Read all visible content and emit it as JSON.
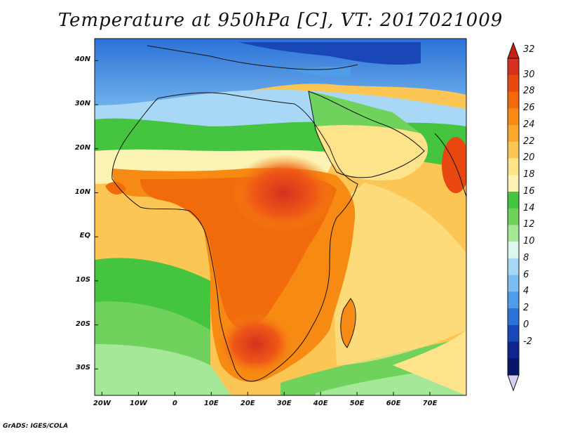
{
  "title": "Temperature at 950hPa [C], VT: 2017021009",
  "credit": "GrADS: IGES/COLA",
  "map": {
    "lat_labels": [
      "40N",
      "30N",
      "20N",
      "10N",
      "EQ",
      "10S",
      "20S",
      "30S"
    ],
    "lon_labels": [
      "20W",
      "10W",
      "0",
      "10E",
      "20E",
      "30E",
      "40E",
      "50E",
      "60E",
      "70E"
    ],
    "lon_range": [
      -22,
      80
    ],
    "lat_range": [
      -36,
      45
    ]
  },
  "colorbar": {
    "labels": [
      "32",
      "30",
      "28",
      "26",
      "24",
      "22",
      "20",
      "18",
      "16",
      "14",
      "12",
      "10",
      "8",
      "6",
      "4",
      "2",
      "0",
      "-2"
    ],
    "colors": [
      "#d7301f",
      "#e8470f",
      "#f16b0c",
      "#f78a12",
      "#fba62c",
      "#fcc655",
      "#fde38a",
      "#fbf2b4",
      "#44c43f",
      "#6ed25d",
      "#a5e898",
      "#dcf7ee",
      "#a9d8f6",
      "#7cbdf0",
      "#4f9ce8",
      "#2c72d7",
      "#1a47b8",
      "#0e2590",
      "#08166a"
    ],
    "cap_top": "#c81e12",
    "cap_bottom": "#d6d0f5"
  }
}
